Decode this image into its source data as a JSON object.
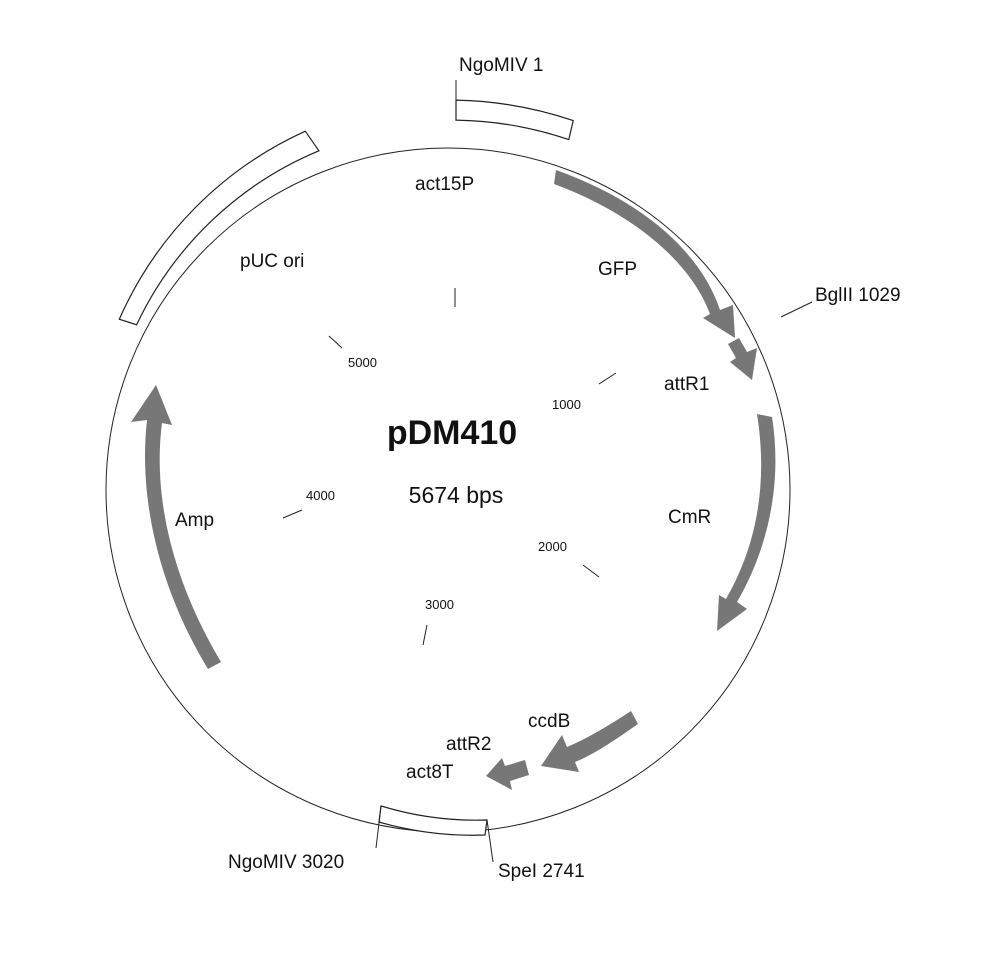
{
  "plasmid": {
    "name": "pDM410",
    "size_label": "5674 bps"
  },
  "features": [
    {
      "label": "act15P",
      "kind": "box"
    },
    {
      "label": "GFP",
      "kind": "arrow"
    },
    {
      "label": "attR1",
      "kind": "arrow"
    },
    {
      "label": "CmR",
      "kind": "arrow"
    },
    {
      "label": "ccdB",
      "kind": "arrow"
    },
    {
      "label": "attR2",
      "kind": "arrow"
    },
    {
      "label": "act8T",
      "kind": "box"
    },
    {
      "label": "Amp",
      "kind": "arrow"
    },
    {
      "label": "pUC ori",
      "kind": "box"
    }
  ],
  "restriction_sites": [
    {
      "label": "NgoMIV 1"
    },
    {
      "label": "BglII 1029"
    },
    {
      "label": "SpeI 2741"
    },
    {
      "label": "NgoMIV 3020"
    }
  ],
  "scale_ticks": [
    "1000",
    "2000",
    "3000",
    "4000",
    "5000"
  ],
  "colors": {
    "feature_arrow": "#777777",
    "outline": "#222222",
    "background": "#ffffff"
  }
}
